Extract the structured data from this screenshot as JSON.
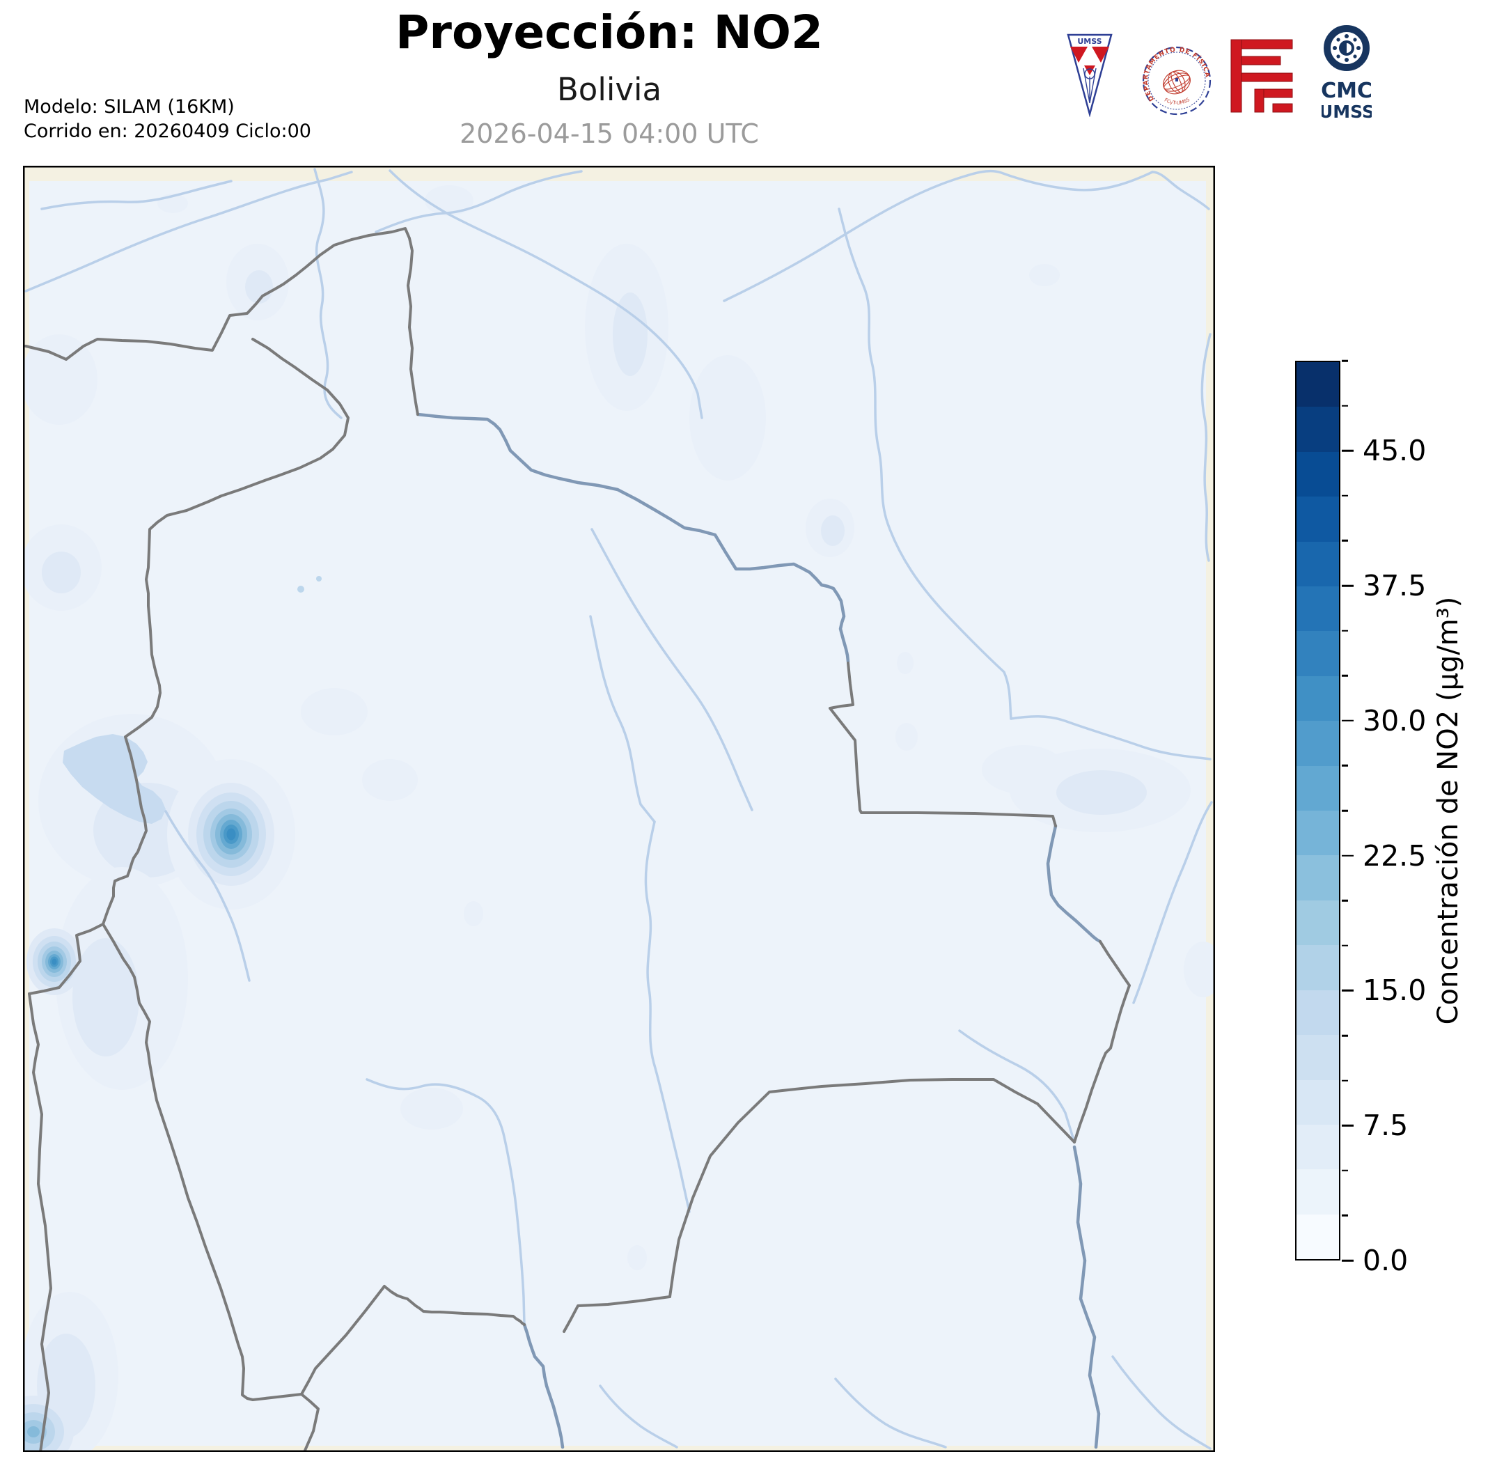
{
  "header": {
    "title": "Proyección: NO2",
    "subtitle": "Bolivia",
    "datetime": "2026-04-15 04:00 UTC",
    "model_line1": "Modelo: SILAM (16KM)",
    "model_line2": "Corrido en: 20260409 Ciclo:00"
  },
  "logos": {
    "pennant_text": "UMSS",
    "stamp_text_top": "DEPARTAMENTO DE FÍSICA",
    "stamp_text_bottom": "FCyT-UMSS",
    "cmc_line1": "CMC",
    "cmc_line2": "UMSS"
  },
  "colorbar": {
    "label": "Concentración de NO2 (µg/m³)",
    "vmin": 0,
    "vmax": 50,
    "minor_step": 2.5,
    "levels": 20,
    "ticks": [
      {
        "value": 0,
        "label": "0.0"
      },
      {
        "value": 7.5,
        "label": "7.5"
      },
      {
        "value": 15,
        "label": "15.0"
      },
      {
        "value": 22.5,
        "label": "22.5"
      },
      {
        "value": 30,
        "label": "30.0"
      },
      {
        "value": 37.5,
        "label": "37.5"
      },
      {
        "value": 45,
        "label": "45.0"
      }
    ],
    "colors": [
      "#f7fbff",
      "#ecf4fb",
      "#e2edf8",
      "#d8e7f5",
      "#cde0f1",
      "#c2d9ee",
      "#b1d2e8",
      "#a0cbe2",
      "#8bc0dd",
      "#76b4d8",
      "#62a8d2",
      "#519ccc",
      "#4090c5",
      "#3282be",
      "#2474b6",
      "#1967ad",
      "#0f59a2",
      "#084c94",
      "#083e80",
      "#08306b"
    ]
  },
  "chart_data": {
    "type": "heatmap",
    "title": "Proyección: NO2",
    "subtitle": "Bolivia",
    "timestamp": "2026-04-15 04:00 UTC",
    "model": "SILAM (16KM)",
    "run": "20260409 cycle 00",
    "variable": "NO2",
    "units": "µg/m³",
    "scale": {
      "min": 0,
      "max": 50,
      "levels": 20,
      "tick_values": [
        0,
        7.5,
        15,
        22.5,
        30,
        37.5,
        45
      ],
      "colormap": "Blues",
      "legend_position": "right"
    },
    "field_summary": {
      "background_level": "0-5",
      "hotspots": [
        {
          "position": "west-central highlands (east of Lake Titicaca)",
          "approx_value": 32
        },
        {
          "position": "far west edge near Pacific coast",
          "approx_value": 30
        },
        {
          "position": "southwest map corner",
          "approx_value": 15
        }
      ]
    }
  },
  "theme": {
    "page_bg": "#ffffff",
    "frame": "#000000",
    "margin_beige": "#f4f1e2",
    "field_blue": "#edf3fa",
    "border_gray": "#7a7a7a",
    "river_light": "#b9cfe9",
    "river_slate": "#8098b5",
    "lake": "#c7dbf0",
    "text_black": "#000000",
    "text_gray": "#9b9b9b",
    "logo_navy": "#17355f",
    "logo_blue": "#2e3f95",
    "logo_red": "#cf1820"
  }
}
